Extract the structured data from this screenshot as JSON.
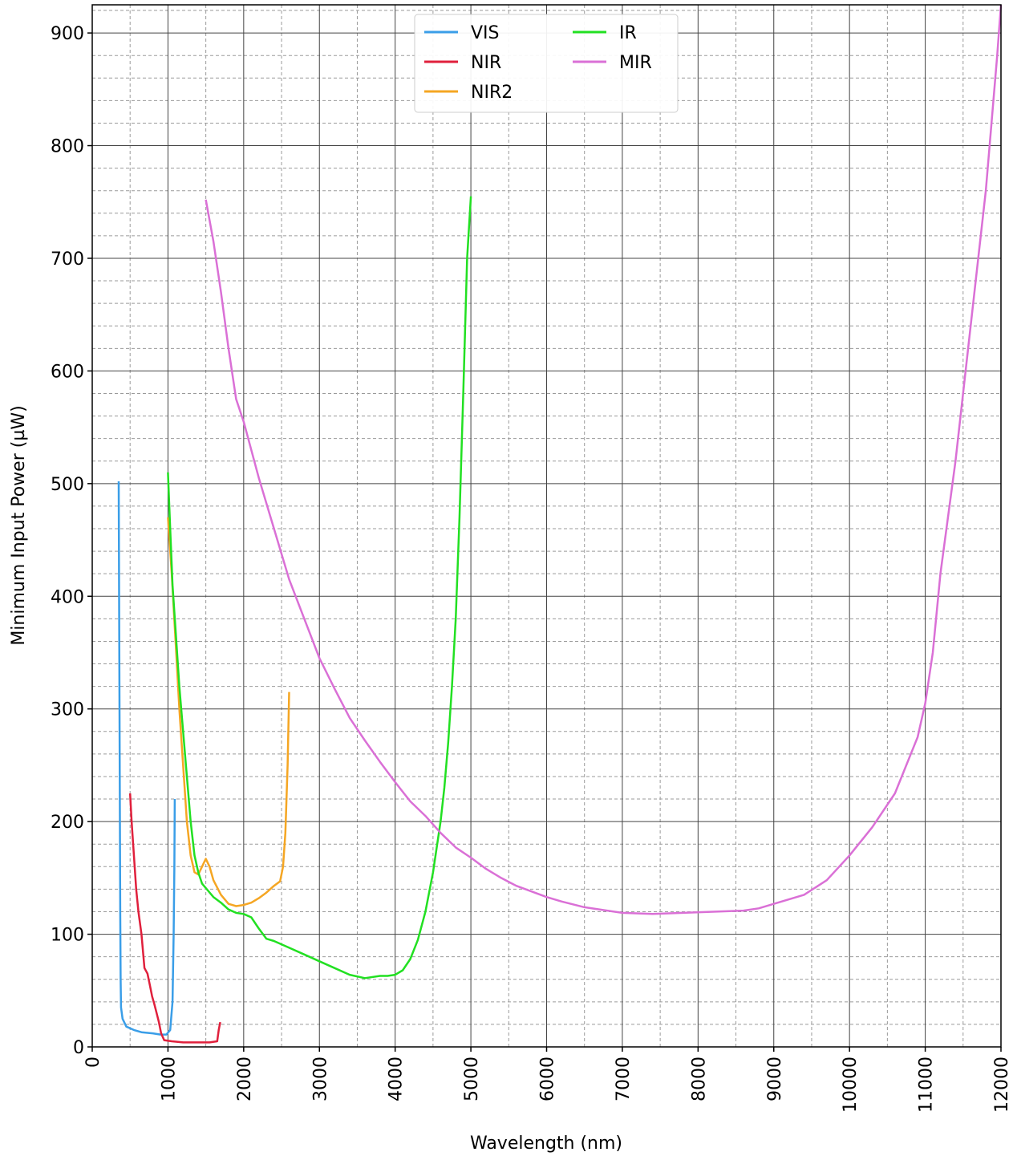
{
  "chart_data": {
    "type": "line",
    "title": "",
    "xlabel": "Wavelength (nm)",
    "ylabel": "Minimum Input Power (µW)",
    "xlim": [
      0,
      12000
    ],
    "ylim": [
      0,
      925
    ],
    "xticks": [
      0,
      1000,
      2000,
      3000,
      4000,
      5000,
      6000,
      7000,
      8000,
      9000,
      10000,
      11000,
      12000
    ],
    "yticks": [
      0,
      100,
      200,
      300,
      400,
      500,
      600,
      700,
      800,
      900
    ],
    "grid": "major and minor",
    "legend_position": "top-center",
    "series": [
      {
        "name": "VIS",
        "color": "#3a9ee8",
        "points": [
          [
            350,
            502
          ],
          [
            355,
            400
          ],
          [
            360,
            300
          ],
          [
            365,
            200
          ],
          [
            370,
            120
          ],
          [
            375,
            60
          ],
          [
            380,
            35
          ],
          [
            400,
            25
          ],
          [
            450,
            18
          ],
          [
            550,
            15
          ],
          [
            650,
            13
          ],
          [
            800,
            12
          ],
          [
            900,
            11
          ],
          [
            980,
            11
          ],
          [
            1030,
            15
          ],
          [
            1060,
            40
          ],
          [
            1075,
            100
          ],
          [
            1085,
            160
          ],
          [
            1090,
            220
          ]
        ]
      },
      {
        "name": "NIR",
        "color": "#e0203c",
        "points": [
          [
            500,
            225
          ],
          [
            520,
            200
          ],
          [
            540,
            180
          ],
          [
            560,
            160
          ],
          [
            580,
            140
          ],
          [
            610,
            120
          ],
          [
            650,
            100
          ],
          [
            690,
            70
          ],
          [
            730,
            65
          ],
          [
            760,
            55
          ],
          [
            790,
            45
          ],
          [
            820,
            38
          ],
          [
            850,
            30
          ],
          [
            880,
            22
          ],
          [
            910,
            12
          ],
          [
            950,
            6
          ],
          [
            1050,
            5
          ],
          [
            1200,
            4
          ],
          [
            1400,
            4
          ],
          [
            1550,
            4
          ],
          [
            1650,
            5
          ],
          [
            1670,
            15
          ],
          [
            1690,
            22
          ]
        ]
      },
      {
        "name": "NIR2",
        "color": "#f5a623",
        "points": [
          [
            1000,
            470
          ],
          [
            1050,
            420
          ],
          [
            1100,
            360
          ],
          [
            1150,
            300
          ],
          [
            1200,
            250
          ],
          [
            1250,
            200
          ],
          [
            1300,
            170
          ],
          [
            1350,
            155
          ],
          [
            1400,
            153
          ],
          [
            1450,
            160
          ],
          [
            1500,
            167
          ],
          [
            1550,
            160
          ],
          [
            1600,
            148
          ],
          [
            1700,
            135
          ],
          [
            1800,
            127
          ],
          [
            1900,
            125
          ],
          [
            2000,
            126
          ],
          [
            2100,
            128
          ],
          [
            2200,
            132
          ],
          [
            2300,
            137
          ],
          [
            2400,
            143
          ],
          [
            2480,
            147
          ],
          [
            2520,
            160
          ],
          [
            2550,
            190
          ],
          [
            2580,
            250
          ],
          [
            2600,
            315
          ]
        ]
      },
      {
        "name": "IR",
        "color": "#22e022",
        "points": [
          [
            1000,
            510
          ],
          [
            1030,
            460
          ],
          [
            1060,
            410
          ],
          [
            1100,
            370
          ],
          [
            1150,
            320
          ],
          [
            1200,
            280
          ],
          [
            1250,
            240
          ],
          [
            1300,
            200
          ],
          [
            1350,
            170
          ],
          [
            1400,
            155
          ],
          [
            1450,
            145
          ],
          [
            1500,
            141
          ],
          [
            1600,
            133
          ],
          [
            1700,
            128
          ],
          [
            1800,
            122
          ],
          [
            1900,
            119
          ],
          [
            2000,
            118
          ],
          [
            2100,
            115
          ],
          [
            2200,
            105
          ],
          [
            2300,
            96
          ],
          [
            2400,
            94
          ],
          [
            2600,
            88
          ],
          [
            2800,
            82
          ],
          [
            3000,
            76
          ],
          [
            3200,
            70
          ],
          [
            3400,
            64
          ],
          [
            3600,
            61
          ],
          [
            3800,
            63
          ],
          [
            3900,
            63
          ],
          [
            4000,
            64
          ],
          [
            4100,
            68
          ],
          [
            4200,
            78
          ],
          [
            4300,
            95
          ],
          [
            4400,
            120
          ],
          [
            4500,
            155
          ],
          [
            4600,
            200
          ],
          [
            4650,
            230
          ],
          [
            4700,
            270
          ],
          [
            4750,
            320
          ],
          [
            4800,
            380
          ],
          [
            4850,
            470
          ],
          [
            4900,
            580
          ],
          [
            4950,
            700
          ],
          [
            5000,
            755
          ]
        ]
      },
      {
        "name": "MIR",
        "color": "#da70d6",
        "points": [
          [
            1500,
            752
          ],
          [
            1600,
            715
          ],
          [
            1700,
            670
          ],
          [
            1800,
            620
          ],
          [
            1900,
            575
          ],
          [
            2000,
            555
          ],
          [
            2200,
            505
          ],
          [
            2400,
            460
          ],
          [
            2600,
            415
          ],
          [
            2800,
            380
          ],
          [
            3000,
            345
          ],
          [
            3200,
            318
          ],
          [
            3400,
            292
          ],
          [
            3600,
            272
          ],
          [
            3800,
            253
          ],
          [
            4000,
            235
          ],
          [
            4200,
            218
          ],
          [
            4400,
            205
          ],
          [
            4600,
            190
          ],
          [
            4800,
            177
          ],
          [
            5000,
            168
          ],
          [
            5200,
            158
          ],
          [
            5400,
            150
          ],
          [
            5600,
            143
          ],
          [
            5800,
            138
          ],
          [
            6000,
            133
          ],
          [
            6200,
            129
          ],
          [
            6500,
            124
          ],
          [
            7000,
            119
          ],
          [
            7400,
            118
          ],
          [
            7800,
            119
          ],
          [
            8200,
            120
          ],
          [
            8600,
            121
          ],
          [
            8800,
            123
          ],
          [
            9000,
            127
          ],
          [
            9400,
            135
          ],
          [
            9700,
            148
          ],
          [
            10000,
            170
          ],
          [
            10300,
            195
          ],
          [
            10600,
            225
          ],
          [
            10900,
            275
          ],
          [
            11000,
            305
          ],
          [
            11100,
            350
          ],
          [
            11200,
            420
          ],
          [
            11400,
            520
          ],
          [
            11600,
            640
          ],
          [
            11800,
            760
          ],
          [
            11950,
            880
          ],
          [
            12000,
            925
          ]
        ]
      }
    ]
  }
}
